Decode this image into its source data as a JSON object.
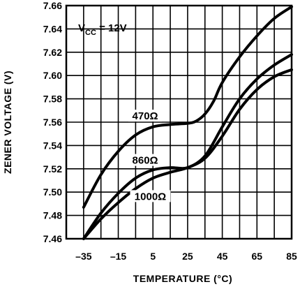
{
  "chart_data": {
    "type": "line",
    "xlabel": "TEMPERATURE (°C)",
    "ylabel": "ZENER VOLTAGE (V)",
    "xlim": [
      -45,
      85
    ],
    "ylim": [
      7.46,
      7.66
    ],
    "x_ticks": [
      -35,
      -15,
      5,
      25,
      45,
      65,
      85
    ],
    "x_tick_labels": [
      "–35",
      "–15",
      "5",
      "25",
      "45",
      "65",
      "85"
    ],
    "y_ticks": [
      7.46,
      7.48,
      7.5,
      7.52,
      7.54,
      7.56,
      7.58,
      7.6,
      7.62,
      7.64,
      7.66
    ],
    "y_tick_labels": [
      "7.46",
      "7.48",
      "7.50",
      "7.52",
      "7.54",
      "7.56",
      "7.58",
      "7.60",
      "7.62",
      "7.64",
      "7.66"
    ],
    "grid": true,
    "annotation": {
      "main": "V",
      "sub": "CC",
      "rest": " = 12V"
    },
    "series": [
      {
        "name": "470Ω",
        "points": [
          [
            -35,
            7.487
          ],
          [
            -25,
            7.515
          ],
          [
            -15,
            7.535
          ],
          [
            -5,
            7.549
          ],
          [
            5,
            7.556
          ],
          [
            15,
            7.558
          ],
          [
            25,
            7.559
          ],
          [
            30,
            7.561
          ],
          [
            35,
            7.567
          ],
          [
            40,
            7.578
          ],
          [
            45,
            7.594
          ],
          [
            55,
            7.616
          ],
          [
            65,
            7.634
          ],
          [
            75,
            7.649
          ],
          [
            85,
            7.659
          ]
        ]
      },
      {
        "name": "860Ω",
        "points": [
          [
            -35,
            7.46
          ],
          [
            -25,
            7.482
          ],
          [
            -15,
            7.499
          ],
          [
            -5,
            7.512
          ],
          [
            5,
            7.519
          ],
          [
            15,
            7.521
          ],
          [
            25,
            7.521
          ],
          [
            35,
            7.531
          ],
          [
            45,
            7.556
          ],
          [
            55,
            7.58
          ],
          [
            65,
            7.597
          ],
          [
            75,
            7.609
          ],
          [
            85,
            7.618
          ]
        ]
      },
      {
        "name": "1000Ω",
        "points": [
          [
            -35,
            7.46
          ],
          [
            -25,
            7.477
          ],
          [
            -15,
            7.491
          ],
          [
            -5,
            7.503
          ],
          [
            5,
            7.512
          ],
          [
            15,
            7.517
          ],
          [
            25,
            7.521
          ],
          [
            35,
            7.529
          ],
          [
            45,
            7.548
          ],
          [
            55,
            7.571
          ],
          [
            65,
            7.588
          ],
          [
            75,
            7.599
          ],
          [
            85,
            7.605
          ]
        ]
      }
    ]
  }
}
